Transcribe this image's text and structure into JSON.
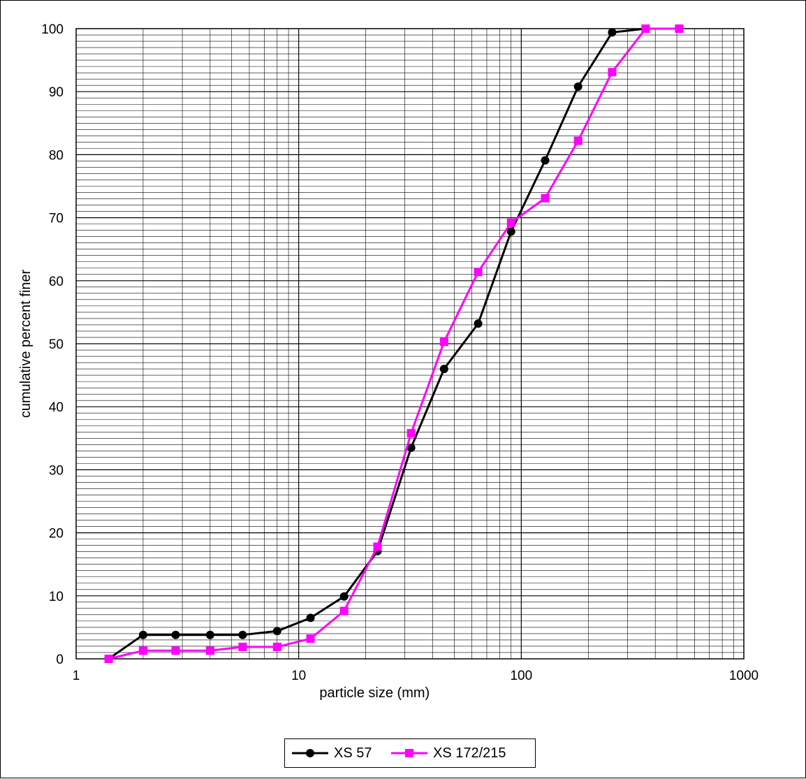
{
  "chart_data": {
    "type": "line",
    "title": "",
    "xlabel": "particle size (mm)",
    "ylabel": "cumulative percent finer",
    "xscale": "log",
    "xlim": [
      1,
      1000
    ],
    "ylim": [
      0,
      100
    ],
    "x_ticks": [
      "1",
      "10",
      "100",
      "1000"
    ],
    "y_ticks": [
      "0",
      "10",
      "20",
      "30",
      "40",
      "50",
      "60",
      "70",
      "80",
      "90",
      "100"
    ],
    "grid": true,
    "legend_position": "bottom",
    "series": [
      {
        "name": "XS 57",
        "color": "#000000",
        "marker": "circle",
        "x": [
          1.4,
          2,
          2.8,
          4,
          5.6,
          8,
          11.3,
          16,
          22.6,
          32,
          45,
          64,
          90,
          128,
          180,
          256,
          362
        ],
        "y": [
          0,
          3.8,
          3.8,
          3.8,
          3.8,
          4.4,
          6.5,
          9.9,
          17.1,
          33.5,
          46,
          53.2,
          67.8,
          79.1,
          90.8,
          99.4,
          100
        ]
      },
      {
        "name": "XS 172/215",
        "color": "#ff00ff",
        "marker": "square",
        "x": [
          1.4,
          2,
          2.8,
          4,
          5.6,
          8,
          11.3,
          16,
          22.6,
          32,
          45,
          64,
          90,
          128,
          180,
          256,
          362,
          512
        ],
        "y": [
          0,
          1.3,
          1.3,
          1.3,
          1.9,
          1.9,
          3.2,
          7.6,
          17.8,
          35.8,
          50.3,
          61.4,
          69.2,
          73.1,
          82.2,
          93.1,
          100,
          100
        ]
      }
    ]
  }
}
